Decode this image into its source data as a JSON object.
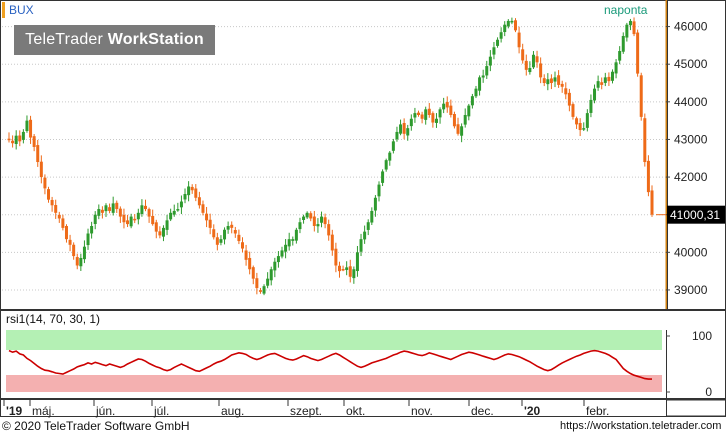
{
  "header": {
    "symbol": "BUX",
    "frequency": "naponta",
    "logo_regular": "TeleTrader ",
    "logo_bold": "WorkStation"
  },
  "footer": {
    "copyright": "© 2020 TeleTrader Software GmbH",
    "url": "https://workstation.teletrader.com"
  },
  "colors": {
    "up_candle": "#2e9a2e",
    "down_candle": "#ee6a18",
    "rsi_line": "#cc0000",
    "overbought_zone": "#b4f0b4",
    "oversold_zone": "#f4b0b0",
    "last_price_box": "#000000",
    "axis_border": "#d08010"
  },
  "chart_data": [
    {
      "type": "candlestick",
      "title": "BUX",
      "subtitle": "naponta",
      "ylim": [
        38600,
        46600
      ],
      "yticks": [
        39000,
        40000,
        41000,
        42000,
        43000,
        44000,
        45000,
        46000
      ],
      "last_value_label": "41000,31",
      "last_value": 41000.31,
      "grid": true,
      "x_period": "2019-04-18 to 2020-02-28",
      "series": [
        {
          "name": "BUX",
          "close_path": [
            43000,
            42900,
            43100,
            42950,
            43200,
            43500,
            43050,
            42800,
            42400,
            42000,
            41700,
            41400,
            41250,
            41050,
            40900,
            40650,
            40350,
            40200,
            39900,
            39650,
            39850,
            40150,
            40500,
            40700,
            41000,
            41150,
            41050,
            41250,
            41100,
            41300,
            41150,
            40950,
            40800,
            40750,
            40950,
            40850,
            41050,
            41250,
            41150,
            40950,
            40750,
            40550,
            40450,
            40650,
            40850,
            41050,
            41100,
            41150,
            41350,
            41550,
            41750,
            41650,
            41450,
            41250,
            41050,
            40850,
            40650,
            40400,
            40200,
            40350,
            40600,
            40700,
            40650,
            40500,
            40300,
            40100,
            39800,
            39550,
            39300,
            39050,
            38950,
            39100,
            39300,
            39550,
            39750,
            39900,
            40050,
            40200,
            40350,
            40350,
            40600,
            40800,
            40950,
            41050,
            40900,
            40700,
            40750,
            40950,
            40750,
            40450,
            40050,
            39650,
            39500,
            39550,
            39600,
            39350,
            39550,
            40000,
            40350,
            40550,
            40800,
            41100,
            41450,
            41800,
            42150,
            42450,
            42650,
            42950,
            43200,
            43400,
            43150,
            43300,
            43550,
            43700,
            43650,
            43550,
            43800,
            43650,
            43450,
            43550,
            43800,
            43950,
            43850,
            43650,
            43350,
            43150,
            43350,
            43650,
            43900,
            44150,
            44350,
            44650,
            44700,
            44950,
            45200,
            45450,
            45650,
            45850,
            46050,
            46150,
            46150,
            45900,
            45450,
            45100,
            44850,
            44900,
            45250,
            45050,
            44650,
            44500,
            44600,
            44500,
            44650,
            44450,
            44400,
            44200,
            43900,
            43600,
            43400,
            43250,
            43300,
            43700,
            44050,
            44350,
            44550,
            44450,
            44650,
            44550,
            44800,
            45050,
            45350,
            45750,
            46050,
            46150,
            45800,
            44750,
            43600,
            42400,
            41600,
            41000.31
          ]
        }
      ],
      "x_tick_labels": [
        "'19",
        "máj.",
        "jún.",
        "júl.",
        "aug.",
        "szept.",
        "okt.",
        "nov.",
        "dec.",
        "'20",
        "febr."
      ]
    },
    {
      "type": "line",
      "title": "rsi1(14, 70, 30, 1)",
      "ylim": [
        0,
        100
      ],
      "yticks": [
        0,
        100
      ],
      "overbought": 70,
      "oversold": 30,
      "series": [
        {
          "name": "rsi1(14, 70, 30, 1)",
          "values": [
            74,
            71,
            73,
            68,
            66,
            60,
            56,
            51,
            46,
            42,
            39,
            38,
            36,
            34,
            33,
            32,
            35,
            38,
            41,
            45,
            47,
            49,
            52,
            50,
            53,
            51,
            49,
            47,
            50,
            48,
            46,
            44,
            46,
            50,
            53,
            56,
            59,
            58,
            55,
            51,
            48,
            45,
            43,
            40,
            38,
            40,
            44,
            47,
            50,
            47,
            44,
            41,
            38,
            37,
            40,
            43,
            46,
            50,
            53,
            55,
            58,
            62,
            66,
            68,
            70,
            69,
            67,
            63,
            60,
            58,
            60,
            63,
            66,
            68,
            69,
            66,
            63,
            60,
            58,
            57,
            59,
            62,
            65,
            63,
            60,
            58,
            56,
            58,
            61,
            64,
            67,
            69,
            66,
            62,
            58,
            54,
            50,
            46,
            44,
            46,
            49,
            52,
            54,
            56,
            58,
            60,
            63,
            66,
            68,
            71,
            73,
            72,
            70,
            68,
            66,
            65,
            67,
            70,
            68,
            66,
            64,
            62,
            60,
            58,
            61,
            64,
            67,
            69,
            71,
            70,
            68,
            66,
            64,
            62,
            60,
            58,
            60,
            63,
            66,
            68,
            67,
            65,
            63,
            60,
            57,
            54,
            50,
            46,
            43,
            40,
            38,
            40,
            44,
            48,
            52,
            55,
            58,
            61,
            64,
            66,
            69,
            71,
            73,
            74,
            73,
            71,
            69,
            66,
            62,
            58,
            50,
            42,
            37,
            33,
            30,
            28,
            26,
            24,
            23,
            23
          ]
        }
      ]
    }
  ]
}
